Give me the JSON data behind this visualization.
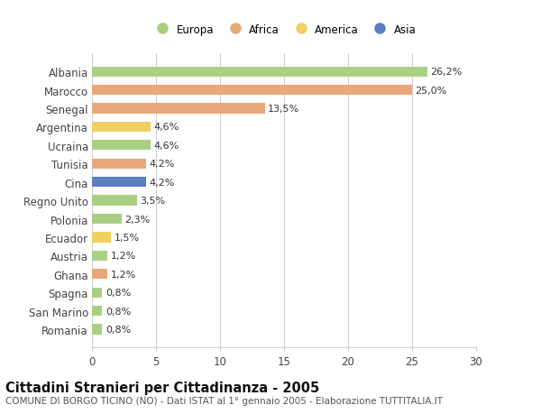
{
  "countries": [
    "Albania",
    "Marocco",
    "Senegal",
    "Argentina",
    "Ucraina",
    "Tunisia",
    "Cina",
    "Regno Unito",
    "Polonia",
    "Ecuador",
    "Austria",
    "Ghana",
    "Spagna",
    "San Marino",
    "Romania"
  ],
  "values": [
    26.2,
    25.0,
    13.5,
    4.6,
    4.6,
    4.2,
    4.2,
    3.5,
    2.3,
    1.5,
    1.2,
    1.2,
    0.8,
    0.8,
    0.8
  ],
  "labels": [
    "26,2%",
    "25,0%",
    "13,5%",
    "4,6%",
    "4,6%",
    "4,2%",
    "4,2%",
    "3,5%",
    "2,3%",
    "1,5%",
    "1,2%",
    "1,2%",
    "0,8%",
    "0,8%",
    "0,8%"
  ],
  "continents": [
    "Europa",
    "Africa",
    "Africa",
    "America",
    "Europa",
    "Africa",
    "Asia",
    "Europa",
    "Europa",
    "America",
    "Europa",
    "Africa",
    "Europa",
    "Europa",
    "Europa"
  ],
  "colors": {
    "Europa": "#aacf82",
    "Africa": "#e8a87c",
    "America": "#f0d060",
    "Asia": "#5b7fbf"
  },
  "title": "Cittadini Stranieri per Cittadinanza - 2005",
  "subtitle": "COMUNE DI BORGO TICINO (NO) - Dati ISTAT al 1° gennaio 2005 - Elaborazione TUTTITALIA.IT",
  "xlim": [
    0,
    30
  ],
  "xticks": [
    0,
    5,
    10,
    15,
    20,
    25,
    30
  ],
  "background_color": "#ffffff",
  "grid_color": "#cccccc",
  "bar_height": 0.55,
  "label_fontsize": 8.0,
  "tick_fontsize": 8.5,
  "title_fontsize": 10.5,
  "subtitle_fontsize": 7.5,
  "legend_order": [
    "Europa",
    "Africa",
    "America",
    "Asia"
  ]
}
